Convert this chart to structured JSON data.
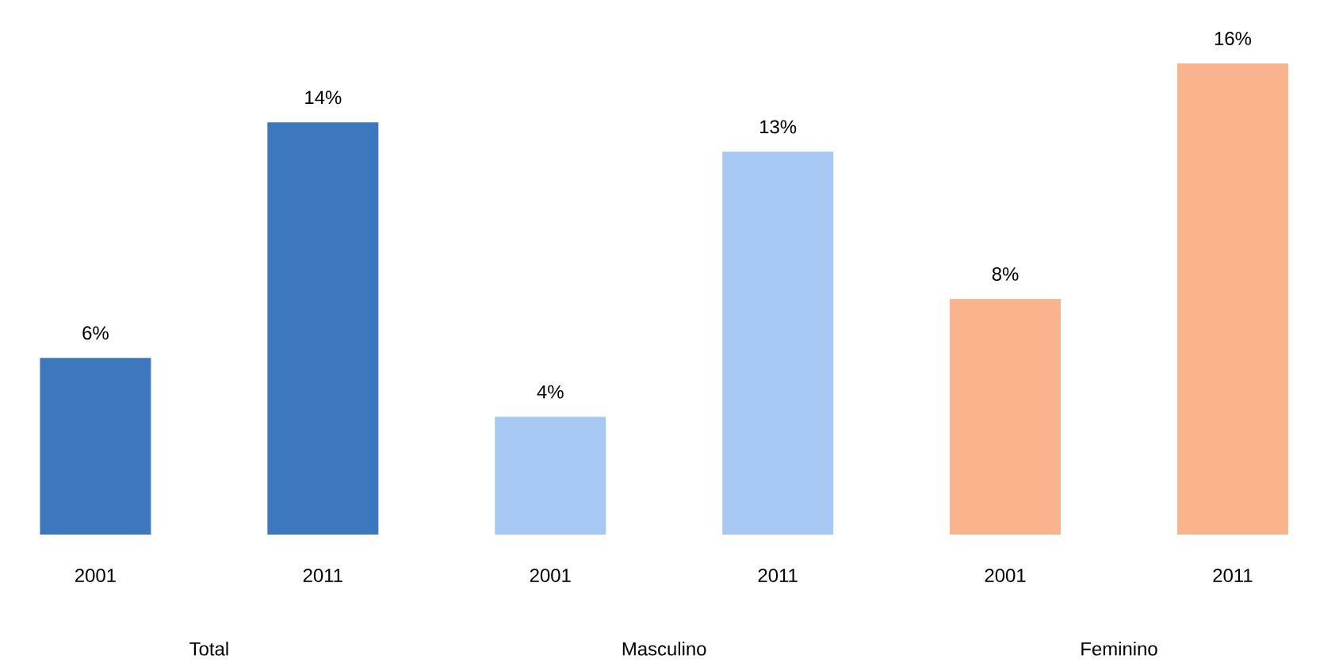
{
  "chart_data": {
    "type": "bar",
    "categories": [
      "2001",
      "2011",
      "2001",
      "2011",
      "2001",
      "2011"
    ],
    "values": [
      6,
      14,
      4,
      13,
      8,
      16
    ],
    "colors": [
      "#3d78bf",
      "#3d78bf",
      "#a6c8f2",
      "#a6c8f2",
      "#f9b48e",
      "#f9b48e"
    ],
    "value_labels": [
      "6%",
      "14%",
      "4%",
      "13%",
      "8%",
      "16%"
    ],
    "annotations": [
      "Total",
      "Masculino",
      "Feminino"
    ]
  }
}
